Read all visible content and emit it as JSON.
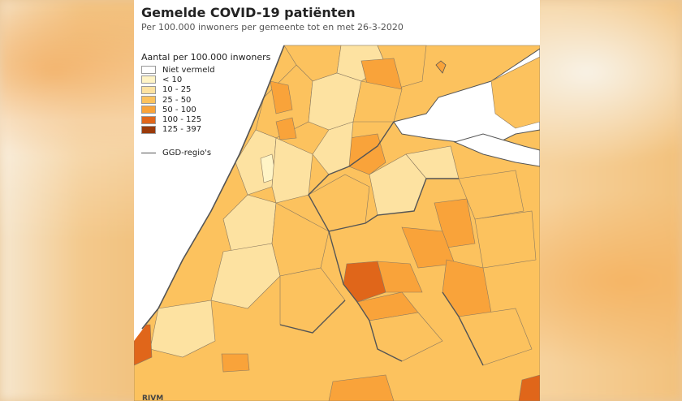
{
  "header": {
    "title": "Gemelde COVID-19 patiënten",
    "subtitle": "Per 100.000 inwoners per gemeente tot en met 26-3-2020"
  },
  "legend": {
    "title": "Aantal per 100.000 inwoners",
    "items": [
      {
        "label": "Niet vermeld",
        "color": "#ffffff"
      },
      {
        "label": "< 10",
        "color": "#fff4c6"
      },
      {
        "label": "10 - 25",
        "color": "#fde2a1"
      },
      {
        "label": "25 - 50",
        "color": "#fcc25e"
      },
      {
        "label": "50 - 100",
        "color": "#f9a33a"
      },
      {
        "label": "100 - 125",
        "color": "#e0661a"
      },
      {
        "label": "125 - 397",
        "color": "#9a3a0a"
      }
    ],
    "ggd_label": "GGD-regio's"
  },
  "colors": {
    "sea": "#ffffff",
    "water": "#ffffff",
    "border": "#8c7a60",
    "ggd_border": "#555555"
  },
  "source": "RIVM"
}
